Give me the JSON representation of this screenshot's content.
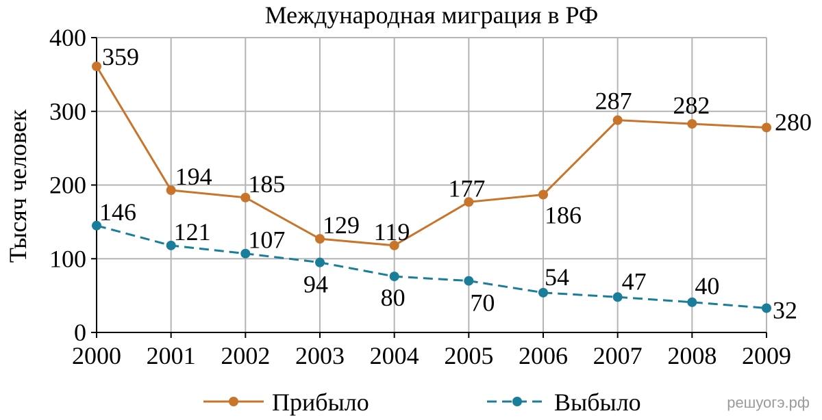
{
  "watermark": "решуогэ.рф",
  "colors": {
    "grid": "#b5b5b5",
    "axis": "#000000"
  },
  "chart_data": {
    "type": "line",
    "title": "Международная миграция в РФ",
    "xlabel": "",
    "ylabel": "Тысяч человек",
    "x": [
      2000,
      2001,
      2002,
      2003,
      2004,
      2005,
      2006,
      2007,
      2008,
      2009
    ],
    "ylim": [
      0,
      400
    ],
    "yticks": [
      0,
      100,
      200,
      300,
      400
    ],
    "grid": true,
    "legend_position": "bottom",
    "series": [
      {
        "name": "Прибыло",
        "color": "#c8742a",
        "style": "solid",
        "marker": "circle",
        "values": [
          359,
          194,
          185,
          129,
          119,
          177,
          186,
          287,
          282,
          280
        ],
        "plotted": [
          361,
          193,
          183,
          127,
          118,
          177,
          187,
          288,
          283,
          278
        ]
      },
      {
        "name": "Выбыло",
        "color": "#1a7d9a",
        "style": "dashed",
        "marker": "circle",
        "values": [
          146,
          121,
          107,
          94,
          80,
          70,
          54,
          47,
          40,
          32
        ],
        "plotted": [
          145,
          118,
          107,
          95,
          76,
          70,
          54,
          48,
          41,
          33
        ]
      }
    ]
  }
}
